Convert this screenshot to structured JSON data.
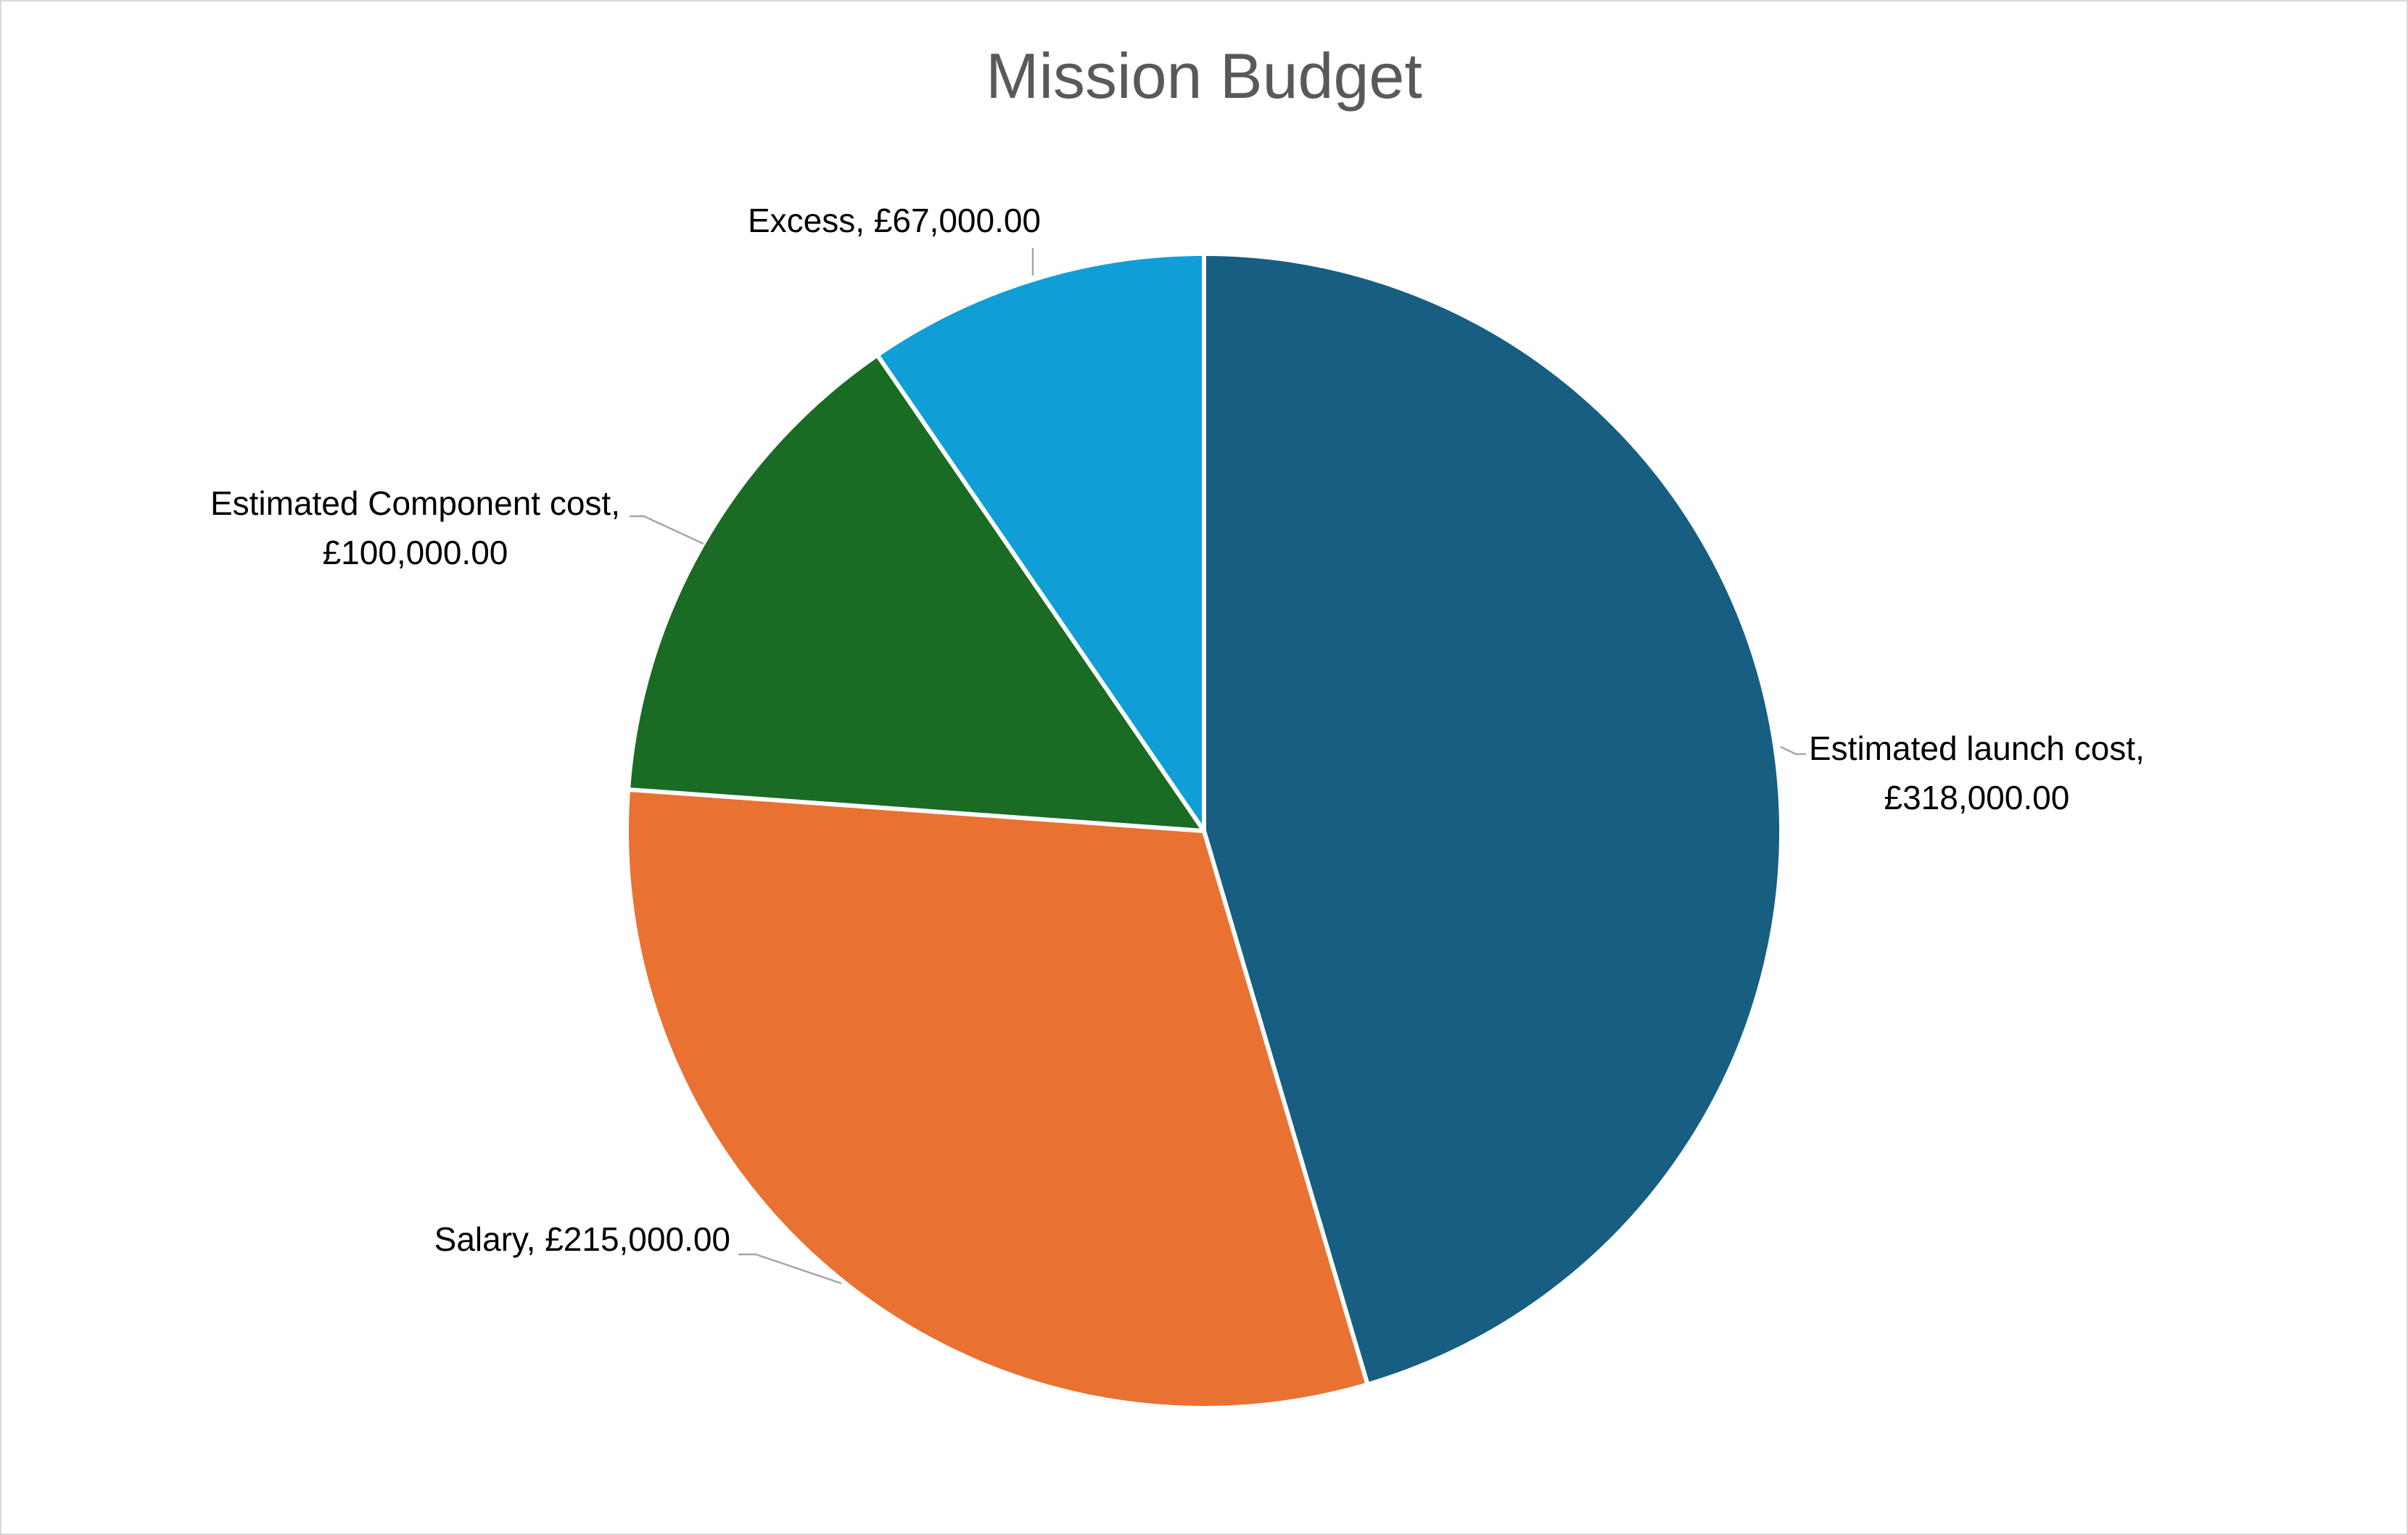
{
  "chart_data": {
    "type": "pie",
    "title": "Mission Budget",
    "start_angle_deg": 0,
    "direction": "clockwise",
    "legend": "none",
    "slices": [
      {
        "label": "Estimated launch cost,",
        "value_text": "£318,000.00",
        "value": 318000,
        "color": "#175e82"
      },
      {
        "label": "Salary,",
        "value_text": "£215,000.00",
        "value": 215000,
        "color": "#e97132"
      },
      {
        "label": "Estimated Component cost,",
        "value_text": "£100,000.00",
        "value": 100000,
        "color": "#1a6b24"
      },
      {
        "label": "Excess,",
        "value_text": "£67,000.00",
        "value": 67000,
        "color": "#0f9ed5"
      }
    ]
  }
}
